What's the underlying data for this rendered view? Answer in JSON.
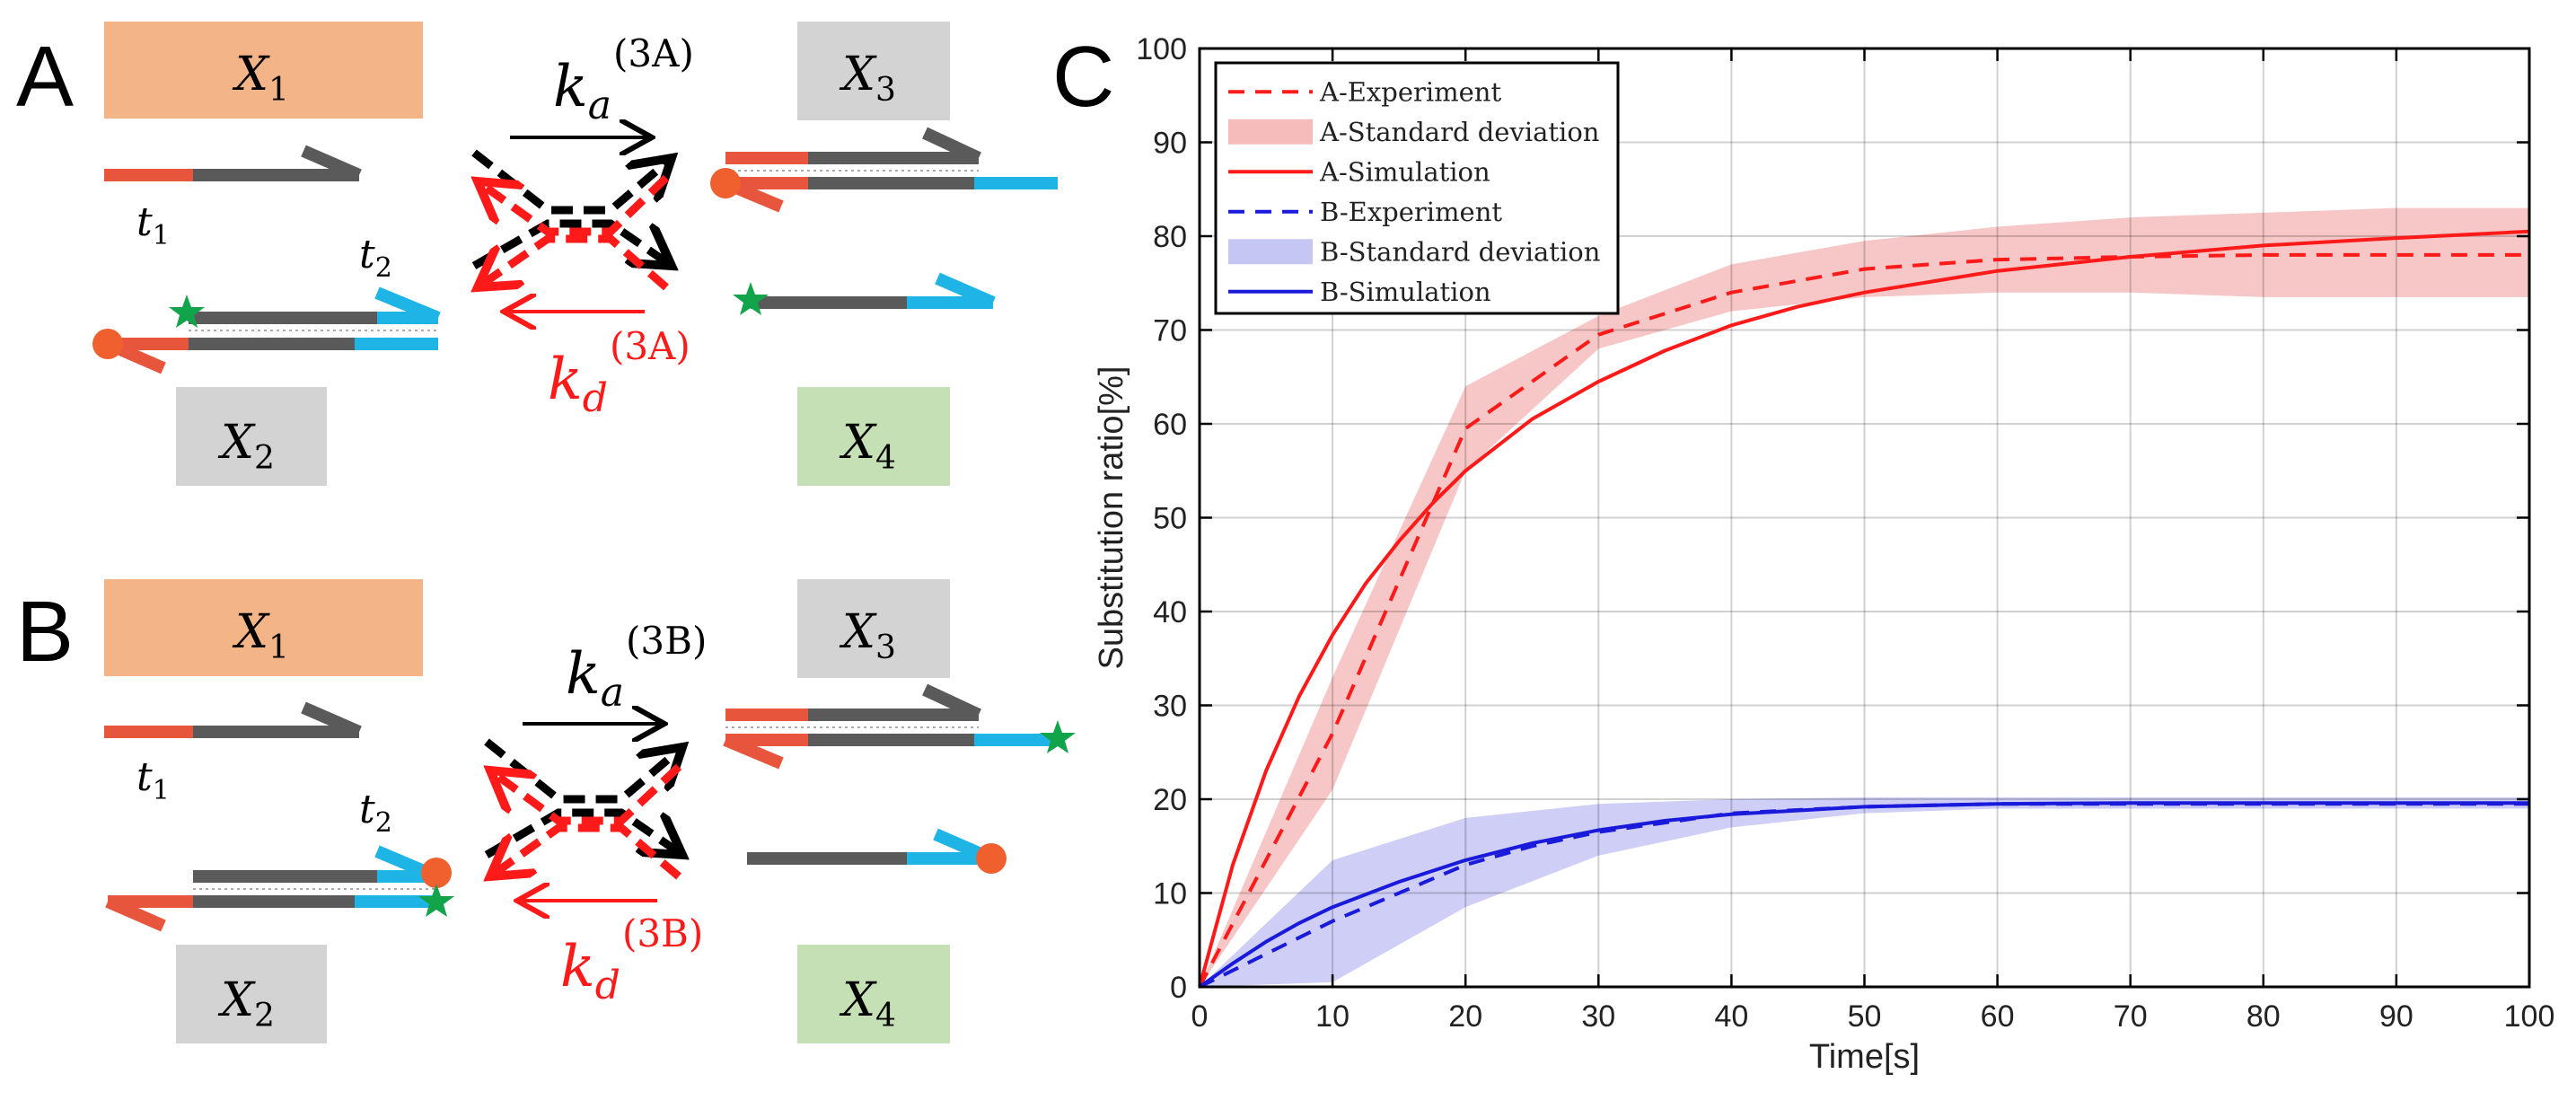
{
  "panels": {
    "A": {
      "letter": "A",
      "x1": "X",
      "x1_sub": "1",
      "x2": "X",
      "x2_sub": "2",
      "x3": "X",
      "x3_sub": "3",
      "x4": "X",
      "x4_sub": "4",
      "t1": "t",
      "t1_sub": "1",
      "t2": "t",
      "t2_sub": "2",
      "ka_base": "k",
      "ka_sub": "a",
      "ka_sup": "(3A)",
      "kd_base": "k",
      "kd_sub": "d",
      "kd_sup": "(3A)"
    },
    "B": {
      "letter": "B",
      "x1": "X",
      "x1_sub": "1",
      "x2": "X",
      "x2_sub": "2",
      "x3": "X",
      "x3_sub": "3",
      "x4": "X",
      "x4_sub": "4",
      "t1": "t",
      "t1_sub": "1",
      "t2": "t",
      "t2_sub": "2",
      "ka_base": "k",
      "ka_sub": "a",
      "ka_sup": "(3B)",
      "kd_base": "k",
      "kd_sub": "d",
      "kd_sup": "(3B)"
    },
    "C": {
      "letter": "C"
    }
  },
  "colors": {
    "orange_box": "#f3b488",
    "gray_box": "#d3d3d3",
    "green_box": "#c5e0b4",
    "toehold_red": "#e8553d",
    "strand_gray": "#5a5a5a",
    "cyan": "#1fb4e6",
    "star_green": "#12a44a",
    "dot_orange": "#f0602e",
    "red": "#ff1a1a",
    "blue": "#1a1adb",
    "red_band": "#f6bcbc",
    "blue_band": "#c6c6f4"
  },
  "chart_data": {
    "type": "line",
    "xlabel": "Time[s]",
    "ylabel": "Substitution ratio[%]",
    "xlim": [
      0,
      100
    ],
    "ylim": [
      0,
      100
    ],
    "xticks": [
      0,
      10,
      20,
      30,
      40,
      50,
      60,
      70,
      80,
      90,
      100
    ],
    "yticks": [
      0,
      10,
      20,
      30,
      40,
      50,
      60,
      70,
      80,
      90,
      100
    ],
    "grid": true,
    "legend_position": "top-left",
    "legend": [
      "A-Experiment",
      "A-Standard deviation",
      "A-Simulation",
      "B-Experiment",
      "B-Standard deviation",
      "B-Simulation"
    ],
    "series": [
      {
        "name": "A-Experiment",
        "style": "dashed",
        "color": "red",
        "x": [
          0,
          10,
          20,
          30,
          40,
          50,
          60,
          70,
          80,
          90,
          100
        ],
        "y": [
          0,
          27,
          59.5,
          69.5,
          74,
          76.5,
          77.5,
          77.8,
          78,
          78,
          78
        ]
      },
      {
        "name": "A-Standard deviation",
        "style": "band",
        "color": "red",
        "x": [
          0,
          10,
          20,
          30,
          40,
          50,
          60,
          70,
          80,
          90,
          100
        ],
        "lower": [
          0,
          21,
          55,
          68,
          72,
          73.5,
          74,
          74,
          73.5,
          73.5,
          73.5
        ],
        "upper": [
          0,
          33,
          64,
          71.5,
          77,
          79.5,
          81,
          82,
          82.5,
          83,
          83
        ]
      },
      {
        "name": "A-Simulation",
        "style": "solid",
        "color": "red",
        "x": [
          0,
          2.5,
          5,
          7.5,
          10,
          12.5,
          15,
          17.5,
          20,
          25,
          30,
          35,
          40,
          45,
          50,
          60,
          70,
          80,
          90,
          100
        ],
        "y": [
          0,
          13,
          23,
          31,
          37.5,
          43,
          47.5,
          51.5,
          55,
          60.5,
          64.5,
          67.8,
          70.5,
          72.5,
          74,
          76.3,
          77.8,
          79,
          79.8,
          80.5
        ]
      },
      {
        "name": "B-Experiment",
        "style": "dashed",
        "color": "blue",
        "x": [
          0,
          5,
          10,
          15,
          20,
          25,
          30,
          40,
          50,
          60,
          70,
          80,
          90,
          100
        ],
        "y": [
          0,
          3.5,
          7,
          10,
          13,
          15,
          16.5,
          18.5,
          19.2,
          19.5,
          19.5,
          19.5,
          19.5,
          19.5
        ]
      },
      {
        "name": "B-Standard deviation",
        "style": "band",
        "color": "blue",
        "x": [
          0,
          10,
          20,
          30,
          40,
          50,
          60,
          70,
          80,
          90,
          100
        ],
        "lower": [
          0,
          0.5,
          8.5,
          14,
          17,
          18.5,
          19,
          19,
          19,
          19,
          19
        ],
        "upper": [
          0,
          13.5,
          18,
          19.5,
          20,
          20.2,
          20.2,
          20.2,
          20.2,
          20.2,
          20.2
        ]
      },
      {
        "name": "B-Simulation",
        "style": "solid",
        "color": "blue",
        "x": [
          0,
          2.5,
          5,
          7.5,
          10,
          15,
          20,
          25,
          30,
          35,
          40,
          50,
          60,
          70,
          80,
          90,
          100
        ],
        "y": [
          0,
          2.5,
          4.8,
          6.8,
          8.5,
          11.2,
          13.5,
          15.3,
          16.7,
          17.7,
          18.4,
          19.2,
          19.5,
          19.6,
          19.6,
          19.6,
          19.6
        ]
      }
    ]
  }
}
